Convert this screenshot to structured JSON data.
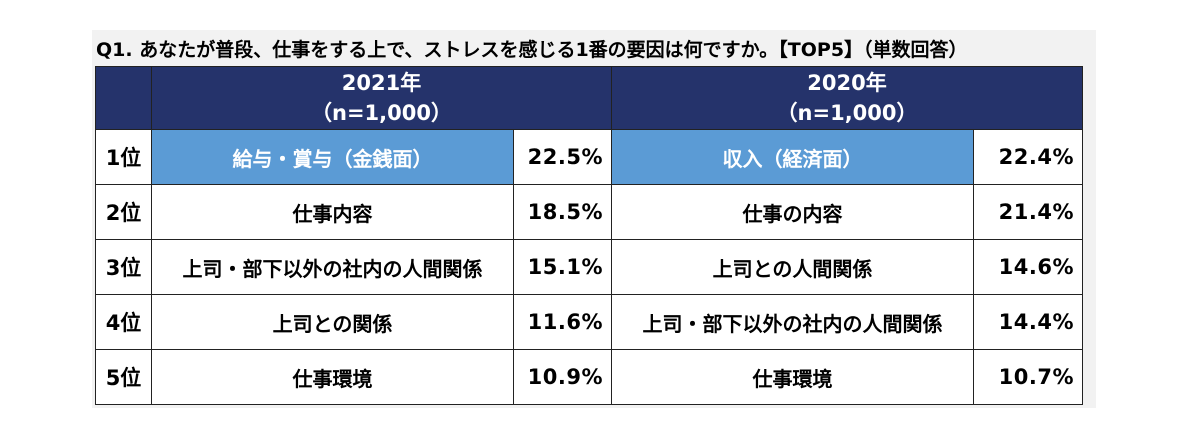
{
  "chart_data": {
    "type": "table",
    "title": "Q1.  あなたが普段、仕事をする上で、ストレスを感じる1番の要因は何ですか。【TOP5】（単数回答）",
    "columns": [
      {
        "year": "2021年",
        "n": "（n=1,000）"
      },
      {
        "year": "2020年",
        "n": "（n=1,000）"
      }
    ],
    "rows": [
      {
        "rank": "1位",
        "a_label": "給与・賞与（金銭面）",
        "a_value": "22.5%",
        "b_label": "収入（経済面）",
        "b_value": "22.4%"
      },
      {
        "rank": "2位",
        "a_label": "仕事内容",
        "a_value": "18.5%",
        "b_label": "仕事の内容",
        "b_value": "21.4%"
      },
      {
        "rank": "3位",
        "a_label": "上司・部下以外の社内の人間関係",
        "a_value": "15.1%",
        "b_label": "上司との人間関係",
        "b_value": "14.6%"
      },
      {
        "rank": "4位",
        "a_label": "上司との関係",
        "a_value": "11.6%",
        "b_label": "上司・部下以外の社内の人間関係",
        "b_value": "14.4%"
      },
      {
        "rank": "5位",
        "a_label": "仕事環境",
        "a_value": "10.9%",
        "b_label": "仕事環境",
        "b_value": "10.7%"
      }
    ],
    "colors": {
      "header_bg": "#25336b",
      "highlight_bg": "#5b9bd5"
    }
  }
}
